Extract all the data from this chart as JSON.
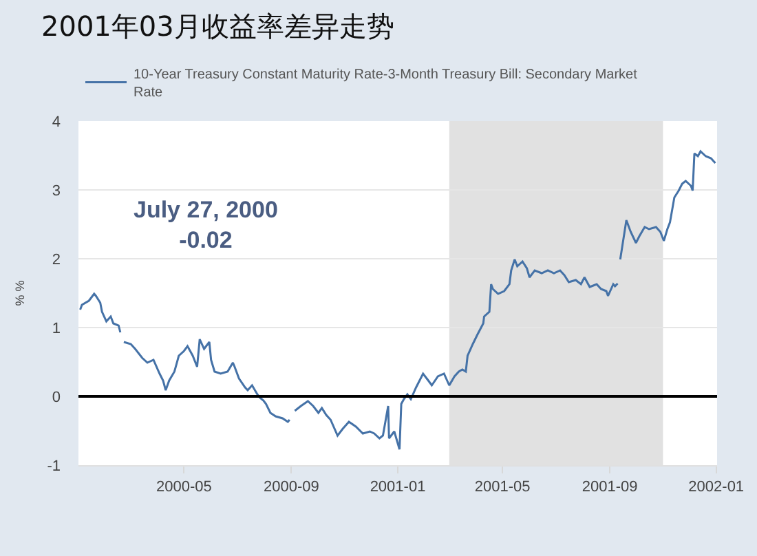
{
  "chart_data": {
    "type": "line",
    "title": "2001年03月收益率差异走势",
    "ylabel": "% %",
    "x": [
      "2000-01-03",
      "2000-01-05",
      "2000-01-13",
      "2000-01-19",
      "2000-01-21",
      "2000-01-26",
      "2000-01-28",
      "2000-02-02",
      "2000-02-07",
      "2000-02-10",
      "2000-02-16",
      "2000-02-18",
      "2000-02-21",
      "2000-02-22",
      "2000-03-01",
      "2000-03-06",
      "2000-03-14",
      "2000-03-20",
      "2000-03-27",
      "2000-04-03",
      "2000-04-07",
      "2000-04-10",
      "2000-04-14",
      "2000-04-20",
      "2000-04-25",
      "2000-05-01",
      "2000-05-05",
      "2000-05-11",
      "2000-05-16",
      "2000-05-19",
      "2000-05-24",
      "2000-05-30",
      "2000-06-01",
      "2000-06-05",
      "2000-06-12",
      "2000-06-20",
      "2000-06-26",
      "2000-06-28",
      "2000-07-03",
      "2000-07-10",
      "2000-07-13",
      "2000-07-18",
      "2000-07-24",
      "2000-07-27",
      "2000-07-31",
      "2000-08-03",
      "2000-08-08",
      "2000-08-14",
      "2000-08-22",
      "2000-08-28",
      "2000-08-30",
      "2000-09-04",
      "2000-09-05",
      "2000-09-12",
      "2000-09-20",
      "2000-09-26",
      "2000-10-02",
      "2000-10-06",
      "2000-10-11",
      "2000-10-16",
      "2000-10-24",
      "2000-10-30",
      "2000-11-06",
      "2000-11-14",
      "2000-11-22",
      "2000-11-30",
      "2000-12-05",
      "2000-12-11",
      "2000-12-15",
      "2000-12-21",
      "2000-12-22",
      "2000-12-28",
      "2001-01-03",
      "2001-01-05",
      "2001-01-08",
      "2001-01-12",
      "2001-01-16",
      "2001-01-22",
      "2001-01-30",
      "2001-02-05",
      "2001-02-09",
      "2001-02-16",
      "2001-02-23",
      "2001-03-01",
      "2001-03-07",
      "2001-03-12",
      "2001-03-16",
      "2001-03-20",
      "2001-03-22",
      "2001-03-28",
      "2001-04-02",
      "2001-04-09",
      "2001-04-10",
      "2001-04-16",
      "2001-04-18",
      "2001-04-20",
      "2001-04-26",
      "2001-05-03",
      "2001-05-09",
      "2001-05-11",
      "2001-05-15",
      "2001-05-18",
      "2001-05-24",
      "2001-05-29",
      "2001-06-01",
      "2001-06-07",
      "2001-06-15",
      "2001-06-22",
      "2001-06-29",
      "2001-07-06",
      "2001-07-11",
      "2001-07-16",
      "2001-07-24",
      "2001-07-30",
      "2001-08-03",
      "2001-08-09",
      "2001-08-17",
      "2001-08-22",
      "2001-08-28",
      "2001-08-30",
      "2001-09-05",
      "2001-09-07",
      "2001-09-10",
      "2001-09-11",
      "2001-09-13",
      "2001-09-20",
      "2001-09-25",
      "2001-10-01",
      "2001-10-05",
      "2001-10-11",
      "2001-10-16",
      "2001-10-24",
      "2001-10-29",
      "2001-11-02",
      "2001-11-06",
      "2001-11-09",
      "2001-11-14",
      "2001-11-19",
      "2001-11-23",
      "2001-11-27",
      "2001-12-03",
      "2001-12-05",
      "2001-12-07",
      "2001-12-11",
      "2001-12-14",
      "2001-12-20",
      "2001-12-26",
      "2001-12-31"
    ],
    "series": [
      {
        "name": "10-Year Treasury Constant Maturity Rate-3-Month Treasury Bill: Secondary Market Rate",
        "color": "#4572a7",
        "values": [
          1.26,
          1.33,
          1.39,
          1.49,
          1.46,
          1.36,
          1.23,
          1.09,
          1.16,
          1.06,
          1.03,
          0.93,
          null,
          0.79,
          0.76,
          0.69,
          0.56,
          0.49,
          0.53,
          0.33,
          0.23,
          0.09,
          0.23,
          0.36,
          0.59,
          0.66,
          0.73,
          0.59,
          0.43,
          0.83,
          0.69,
          0.79,
          0.53,
          0.36,
          0.33,
          0.36,
          0.49,
          0.43,
          0.26,
          0.13,
          0.09,
          0.16,
          0.03,
          -0.02,
          -0.06,
          -0.11,
          -0.24,
          -0.29,
          -0.32,
          -0.37,
          -0.34,
          null,
          -0.21,
          -0.14,
          -0.07,
          -0.14,
          -0.24,
          -0.17,
          -0.27,
          -0.34,
          -0.57,
          -0.47,
          -0.37,
          -0.44,
          -0.54,
          -0.51,
          -0.54,
          -0.61,
          -0.57,
          -0.14,
          -0.61,
          -0.51,
          -0.77,
          -0.11,
          -0.04,
          0.03,
          -0.04,
          0.13,
          0.33,
          0.23,
          0.16,
          0.29,
          0.33,
          0.16,
          0.29,
          0.36,
          0.39,
          0.36,
          0.59,
          0.76,
          0.89,
          1.06,
          1.16,
          1.23,
          1.63,
          1.56,
          1.49,
          1.53,
          1.63,
          1.83,
          1.99,
          1.89,
          1.96,
          1.86,
          1.73,
          1.83,
          1.79,
          1.83,
          1.79,
          1.83,
          1.76,
          1.66,
          1.69,
          1.63,
          1.73,
          1.59,
          1.63,
          1.56,
          1.53,
          1.46,
          1.63,
          1.6,
          1.64,
          null,
          1.99,
          2.56,
          2.39,
          2.23,
          2.33,
          2.46,
          2.43,
          2.46,
          2.39,
          2.26,
          2.43,
          2.53,
          2.89,
          2.99,
          3.09,
          3.13,
          3.06,
          2.99,
          3.53,
          3.49,
          3.56,
          3.49,
          3.46,
          3.39
        ]
      }
    ],
    "xlim": [
      "2000-01-01",
      "2002-01-02"
    ],
    "xticks": [
      "2000-05",
      "2000-09",
      "2001-01",
      "2001-05",
      "2001-09",
      "2002-01"
    ],
    "ylim": [
      -1,
      4
    ],
    "yticks": [
      -1,
      0,
      1,
      2,
      3,
      4
    ],
    "grid": "y",
    "legend": "top left",
    "ref_lines": [
      {
        "axis": "y",
        "value": 0,
        "color": "#000000"
      }
    ],
    "bands": [
      {
        "axis": "x",
        "from": "2001-03-01",
        "to": "2001-11-01",
        "color": "#e1e1e1"
      }
    ],
    "annotations": [
      "July 27, 2000\n-0.02"
    ]
  }
}
